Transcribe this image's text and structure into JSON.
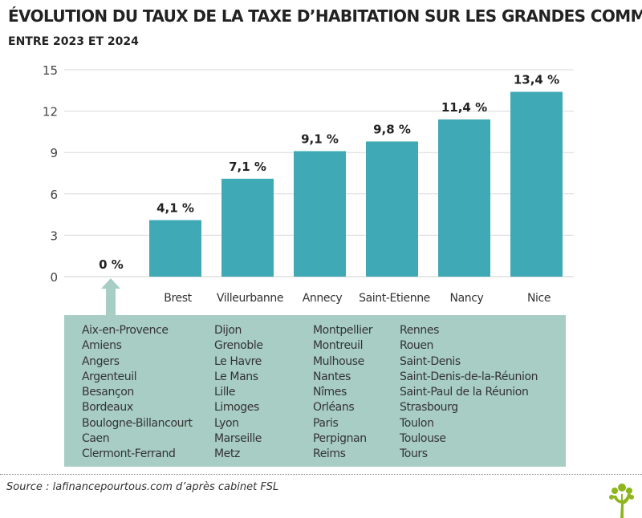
{
  "title": "ÉVOLUTION DU TAUX DE LA TAXE D’HABITATION SUR LES GRANDES COMMUNES",
  "subtitle": "ENTRE 2023 ET 2024",
  "chart_data": {
    "type": "bar",
    "title": "ÉVOLUTION DU TAUX DE LA TAXE D’HABITATION SUR LES GRANDES COMMUNES",
    "subtitle": "ENTRE 2023 ET 2024",
    "categories": [
      "",
      "Brest",
      "Villeurbanne",
      "Annecy",
      "Saint-Etienne",
      "Nancy",
      "Nice"
    ],
    "values": [
      0,
      4.1,
      7.1,
      9.1,
      9.8,
      11.4,
      13.4
    ],
    "data_labels": [
      "0 %",
      "4,1 %",
      "7,1 %",
      "9,1 %",
      "9,8 %",
      "11,4 %",
      "13,4 %"
    ],
    "yticks": [
      "0",
      "3",
      "6",
      "9",
      "12",
      "15"
    ],
    "ylim": [
      0,
      15
    ],
    "grid": true,
    "bar_color": "#3faab5",
    "xlabel": "",
    "ylabel": ""
  },
  "zero_group": {
    "color": "#a8cdc4",
    "columns": [
      [
        "Aix-en-Provence",
        "Amiens",
        "Angers",
        "Argenteuil",
        "Besançon",
        "Bordeaux",
        "Boulogne-Billancourt",
        "Caen",
        "Clermont-Ferrand"
      ],
      [
        "Dijon",
        "Grenoble",
        "Le Havre",
        "Le Mans",
        "Lille",
        "Limoges",
        "Lyon",
        "Marseille",
        "Metz"
      ],
      [
        "Montpellier",
        "Montreuil",
        "Mulhouse",
        "Nantes",
        "Nîmes",
        "Orléans",
        "Paris",
        "Perpignan",
        "Reims"
      ],
      [
        "Rennes",
        "Rouen",
        "Saint-Denis",
        "Saint-Denis-de-la-Réunion",
        "Saint-Paul de la Réunion",
        "Strasbourg",
        "Toulon",
        "Toulouse",
        "Tours"
      ]
    ]
  },
  "source": "Source : lafinancepourtous.com d’après cabinet FSL",
  "logo": "tree-logo"
}
